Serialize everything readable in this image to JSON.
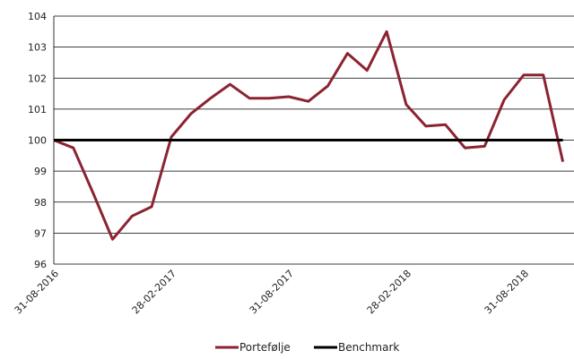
{
  "chart_data": {
    "type": "line",
    "title": "",
    "xlabel": "",
    "ylabel": "",
    "ylim": [
      96,
      104
    ],
    "yticks": [
      96,
      97,
      98,
      99,
      100,
      101,
      102,
      103,
      104
    ],
    "xtick_labels": [
      "31-08-2016",
      "28-02-2017",
      "31-08-2017",
      "28-02-2018",
      "31-08-2018"
    ],
    "grid": "horizontal",
    "legend_position": "bottom",
    "series": [
      {
        "name": "Portefølje",
        "color": "#8b2332",
        "values": [
          100.0,
          99.75,
          98.3,
          96.8,
          97.55,
          97.85,
          100.1,
          100.85,
          101.35,
          101.8,
          101.35,
          101.35,
          101.4,
          101.25,
          101.75,
          102.8,
          102.25,
          103.5,
          101.15,
          100.45,
          100.5,
          99.75,
          99.8,
          101.3,
          102.1,
          102.1,
          99.3
        ]
      },
      {
        "name": "Benchmark",
        "color": "#000000",
        "values": [
          100,
          100,
          100,
          100,
          100,
          100,
          100,
          100,
          100,
          100,
          100,
          100,
          100,
          100,
          100,
          100,
          100,
          100,
          100,
          100,
          100,
          100,
          100,
          100,
          100,
          100,
          100
        ]
      }
    ]
  }
}
